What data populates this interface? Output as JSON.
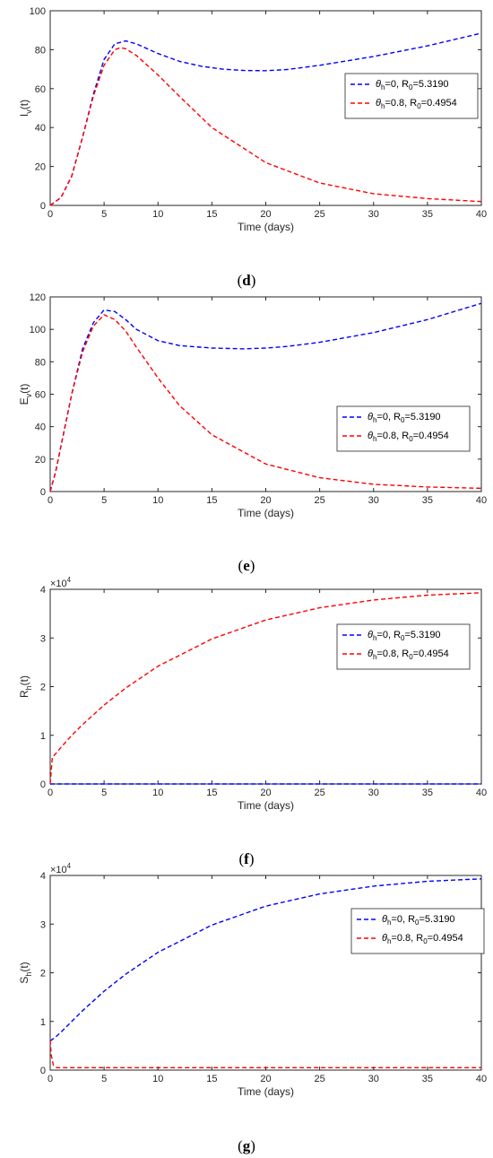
{
  "chart_data": [
    {
      "type": "line",
      "panel": "d",
      "xlabel": "Time (days)",
      "ylabel": {
        "base": "I",
        "sub": "v",
        "suffix": "(t)"
      },
      "xlim": [
        0,
        40
      ],
      "ylim": [
        0,
        100
      ],
      "xticks": [
        0,
        5,
        10,
        15,
        20,
        25,
        30,
        35,
        40
      ],
      "yticks": [
        0,
        20,
        40,
        60,
        80,
        100
      ],
      "exponent": null,
      "legend_position": "upper-right",
      "series": [
        {
          "label": {
            "theta_value": "0",
            "r0_value": "5.3190"
          },
          "color": "#0000ff",
          "x": [
            0,
            1,
            2,
            3,
            4,
            5,
            6,
            7,
            8,
            10,
            12,
            14,
            16,
            18,
            20,
            22,
            25,
            30,
            35,
            40
          ],
          "y": [
            0,
            4,
            15,
            35,
            57,
            75,
            83,
            84.5,
            83,
            78,
            74,
            71.5,
            70,
            69.3,
            69.2,
            69.8,
            72,
            76.5,
            82,
            88.5
          ]
        },
        {
          "label": {
            "theta_value": "0.8",
            "r0_value": "0.4954"
          },
          "color": "#ff0000",
          "x": [
            0,
            1,
            2,
            3,
            4,
            5,
            6,
            6.5,
            7,
            8,
            10,
            12,
            15,
            20,
            25,
            30,
            35,
            40
          ],
          "y": [
            0,
            4,
            15,
            35,
            56,
            72,
            80,
            81,
            80.5,
            77,
            67,
            56,
            40,
            22,
            11.5,
            6,
            3.5,
            2
          ]
        }
      ]
    },
    {
      "type": "line",
      "panel": "e",
      "xlabel": "Time (days)",
      "ylabel": {
        "base": "E",
        "sub": "v",
        "suffix": "(t)"
      },
      "xlim": [
        0,
        40
      ],
      "ylim": [
        0,
        120
      ],
      "xticks": [
        0,
        5,
        10,
        15,
        20,
        25,
        30,
        35,
        40
      ],
      "yticks": [
        0,
        20,
        40,
        60,
        80,
        100,
        120
      ],
      "exponent": null,
      "legend_position": "center-right",
      "series": [
        {
          "label": {
            "theta_value": "0",
            "r0_value": "5.3190"
          },
          "color": "#0000ff",
          "x": [
            0,
            0.5,
            1,
            2,
            3,
            4,
            5,
            6,
            7,
            8,
            10,
            12,
            15,
            18,
            20,
            22,
            25,
            30,
            35,
            40
          ],
          "y": [
            0,
            12,
            28,
            60,
            88,
            104,
            112,
            111,
            106,
            100,
            93,
            90,
            88.5,
            88,
            88.5,
            89.5,
            92,
            98,
            106,
            116
          ]
        },
        {
          "label": {
            "theta_value": "0.8",
            "r0_value": "0.4954"
          },
          "color": "#ff0000",
          "x": [
            0,
            0.5,
            1,
            2,
            3,
            4,
            5,
            6,
            7,
            8,
            10,
            12,
            15,
            20,
            25,
            30,
            35,
            40
          ],
          "y": [
            0,
            12,
            28,
            60,
            86,
            102,
            109,
            106,
            99,
            89,
            70,
            53,
            35,
            17,
            8.5,
            4.5,
            2.8,
            2
          ]
        }
      ]
    },
    {
      "type": "line",
      "panel": "f",
      "xlabel": "Time (days)",
      "ylabel": {
        "base": "R",
        "sub": "h",
        "suffix": "(t)"
      },
      "xlim": [
        0,
        40
      ],
      "ylim": [
        0,
        4
      ],
      "xticks": [
        0,
        5,
        10,
        15,
        20,
        25,
        30,
        35,
        40
      ],
      "yticks": [
        0,
        1,
        2,
        3,
        4
      ],
      "exponent": {
        "base": "×10",
        "power": "4"
      },
      "legend_position": "upper-right",
      "series": [
        {
          "label": {
            "theta_value": "0",
            "r0_value": "5.3190"
          },
          "color": "#0000ff",
          "x": [
            0,
            40
          ],
          "y": [
            0,
            0
          ]
        },
        {
          "label": {
            "theta_value": "0.8",
            "r0_value": "0.4954"
          },
          "color": "#ff0000",
          "x": [
            0,
            0.2,
            0.5,
            1,
            2,
            3,
            5,
            7,
            10,
            15,
            20,
            25,
            30,
            35,
            40
          ],
          "y": [
            0,
            0.55,
            0.62,
            0.75,
            1.0,
            1.22,
            1.62,
            1.97,
            2.42,
            2.98,
            3.37,
            3.62,
            3.78,
            3.88,
            3.93
          ]
        }
      ]
    },
    {
      "type": "line",
      "panel": "g",
      "xlabel": "Time (days)",
      "ylabel": {
        "base": "S",
        "sub": "h",
        "suffix": "(t)"
      },
      "xlim": [
        0,
        40
      ],
      "ylim": [
        0,
        4
      ],
      "xticks": [
        0,
        5,
        10,
        15,
        20,
        25,
        30,
        35,
        40
      ],
      "yticks": [
        0,
        1,
        2,
        3,
        4
      ],
      "exponent": {
        "base": "×10",
        "power": "4"
      },
      "legend_position": "upper-right",
      "series": [
        {
          "label": {
            "theta_value": "0",
            "r0_value": "5.3190"
          },
          "color": "#0000ff",
          "x": [
            0,
            0.5,
            1,
            2,
            3,
            5,
            7,
            10,
            15,
            20,
            25,
            30,
            35,
            40
          ],
          "y": [
            0.6,
            0.68,
            0.78,
            1.0,
            1.22,
            1.62,
            1.97,
            2.42,
            2.98,
            3.37,
            3.62,
            3.78,
            3.88,
            3.93
          ]
        },
        {
          "label": {
            "theta_value": "0.8",
            "r0_value": "0.4954"
          },
          "color": "#ff0000",
          "x": [
            0,
            0.1,
            0.3,
            0.6,
            1,
            40
          ],
          "y": [
            0.62,
            0.3,
            0.1,
            0.05,
            0.05,
            0.05
          ]
        }
      ]
    }
  ],
  "captions": [
    {
      "open": "(",
      "letter": "d",
      "close": ")"
    },
    {
      "open": "(",
      "letter": "e",
      "close": ")"
    },
    {
      "open": "(",
      "letter": "f",
      "close": ")"
    },
    {
      "open": "(",
      "letter": "g",
      "close": ")"
    }
  ],
  "legend_text": {
    "theta": "θ",
    "theta_sub": "h",
    "eq_sep": "=",
    "comma_r": ", R",
    "r_sub": "0",
    "r_eq": "="
  }
}
